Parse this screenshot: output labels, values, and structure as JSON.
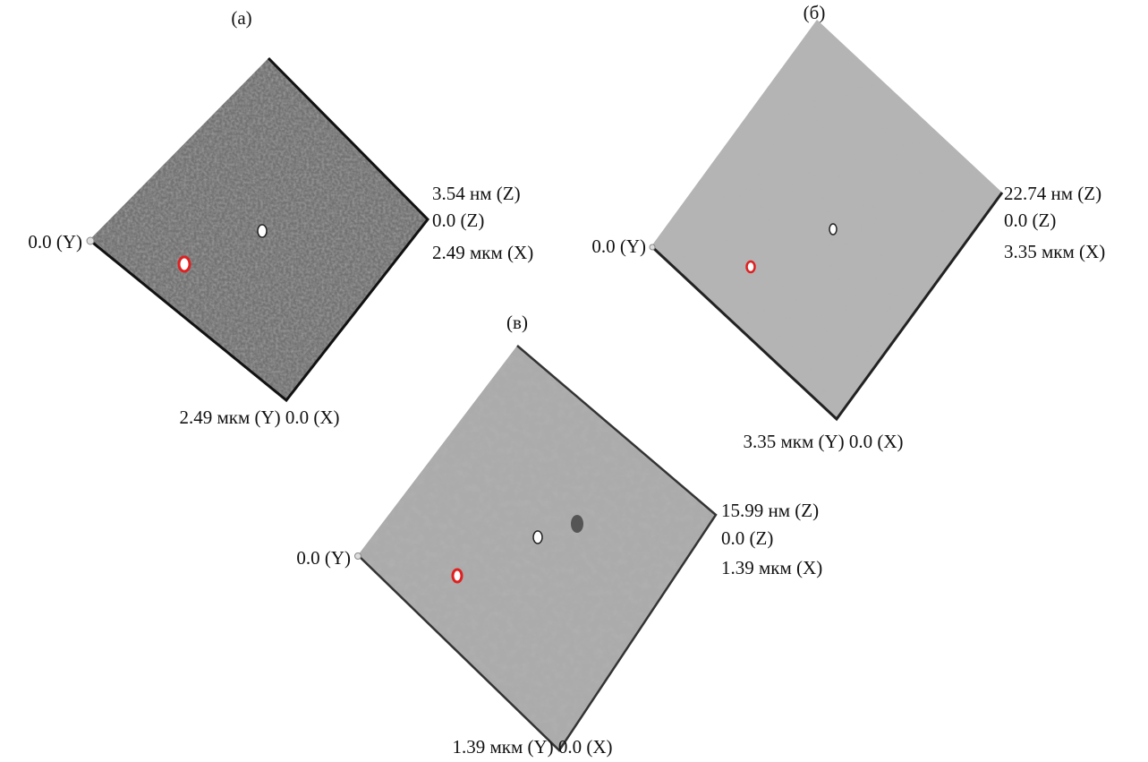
{
  "panels": [
    {
      "label": "(а)",
      "z_max": "3.54 нм (Z)",
      "z_min": "0.0 (Z)",
      "x_max": "2.49 мкм (X)",
      "y_origin": "0.0 (Y)",
      "bottom": "2.49 мкм (Y) 0.0 (X)"
    },
    {
      "label": "(б)",
      "z_max": "22.74 нм (Z)",
      "z_min": "0.0 (Z)",
      "x_max": "3.35 мкм (X)",
      "y_origin": "0.0 (Y)",
      "bottom": "3.35 мкм (Y) 0.0 (X)"
    },
    {
      "label": "(в)",
      "z_max": "15.99 нм (Z)",
      "z_min": "0.0 (Z)",
      "x_max": "1.39 мкм (X)",
      "y_origin": "0.0 (Y)",
      "bottom": "1.39 мкм (Y) 0.0 (X)"
    }
  ]
}
